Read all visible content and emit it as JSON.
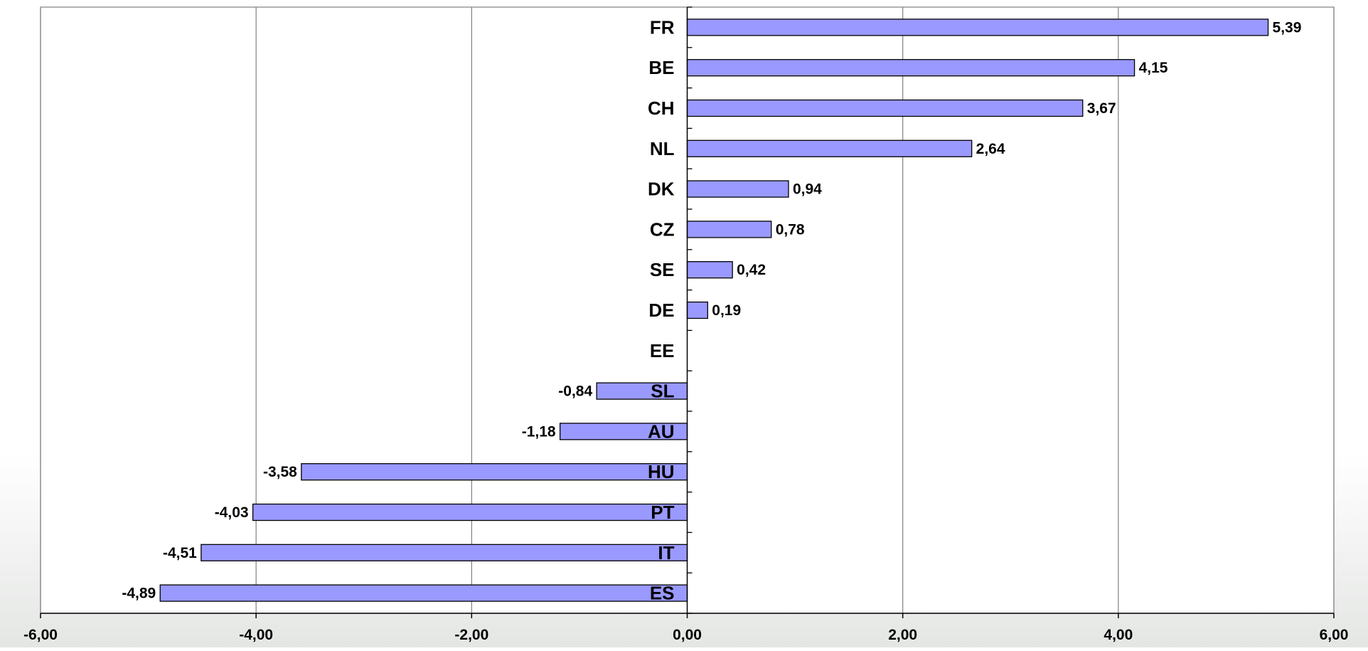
{
  "chart_data": {
    "type": "bar",
    "orientation": "horizontal",
    "categories": [
      "FR",
      "BE",
      "CH",
      "NL",
      "DK",
      "CZ",
      "SE",
      "DE",
      "EE",
      "SL",
      "AU",
      "HU",
      "PT",
      "IT",
      "ES"
    ],
    "values": [
      5.39,
      4.15,
      3.67,
      2.64,
      0.94,
      0.78,
      0.42,
      0.19,
      0,
      -0.84,
      -1.18,
      -3.58,
      -4.03,
      -4.51,
      -4.89
    ],
    "data_labels": [
      "5,39",
      "4,15",
      "3,67",
      "2,64",
      "0,94",
      "0,78",
      "0,42",
      "0,19",
      "",
      "-0,84",
      "-1,18",
      "-3,58",
      "-4,03",
      "-4,51",
      "-4,89"
    ],
    "xlim": [
      -6,
      6
    ],
    "x_ticks": [
      -6,
      -4,
      -2,
      0,
      2,
      4,
      6
    ],
    "x_tick_labels": [
      "-6,00",
      "-4,00",
      "-2,00",
      "0,00",
      "2,00",
      "4,00",
      "6,00"
    ],
    "title": "",
    "xlabel": "",
    "ylabel": "",
    "grid": "vertical",
    "legend": "none",
    "colors": {
      "bar_fill": "#9999ff",
      "bar_stroke": "#000000",
      "grid": "#808080",
      "axis": "#000000"
    }
  }
}
